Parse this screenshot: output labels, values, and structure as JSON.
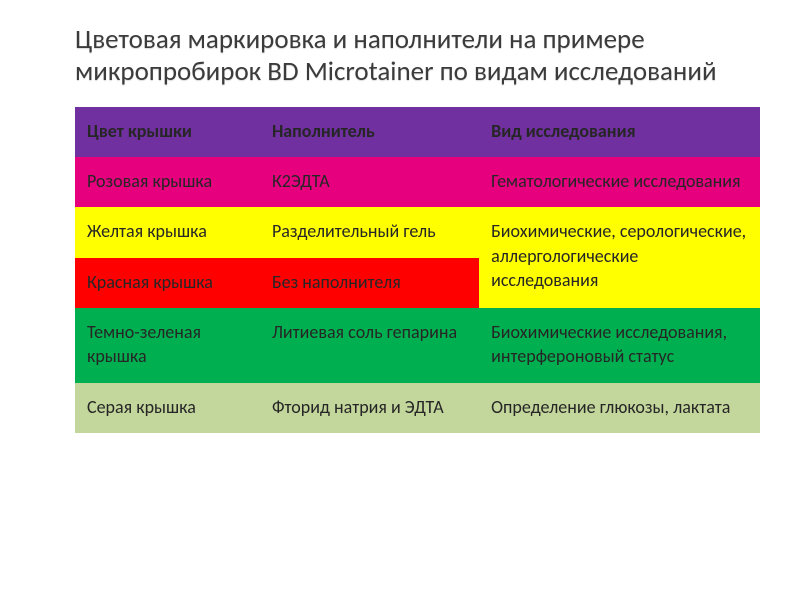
{
  "title": "Цветовая маркировка и наполнители на примере микропробирок BD Microtainer по видам исследований",
  "table": {
    "header": {
      "bg": "#7030a0",
      "text_color": "#ffffff",
      "cols": [
        "Цвет крышки",
        "Наполнитель",
        "Вид исследования"
      ]
    },
    "row_pink": {
      "bg": "#e6007e",
      "cap": "Розовая крышка",
      "additive": "К2ЭДТА",
      "study": "Гематологические исследования"
    },
    "row_yellow": {
      "bg": "#ffff00",
      "cap": "Желтая крышка",
      "additive": "Разделительный гель",
      "study": "Биохимические, серологические, аллергологические исследования"
    },
    "row_red": {
      "bg": "#ff0000",
      "cap": "Красная крышка",
      "additive": "Без наполнителя"
    },
    "row_green": {
      "bg": "#00b050",
      "cap": "Темно-зеленая крышка",
      "additive": "Литиевая соль гепарина",
      "study": "Биохимические исследования, интерфероновый статус"
    },
    "row_grey": {
      "bg": "#c3d69b",
      "cap": "Серая крышка",
      "additive": "Фторид натрия и ЭДТА",
      "study": "Определение глюкозы, лактата"
    }
  },
  "colors": {
    "title": "#3b3b3b",
    "body_text": "#262626"
  },
  "fontsizes": {
    "title": 27,
    "cell": 18
  }
}
